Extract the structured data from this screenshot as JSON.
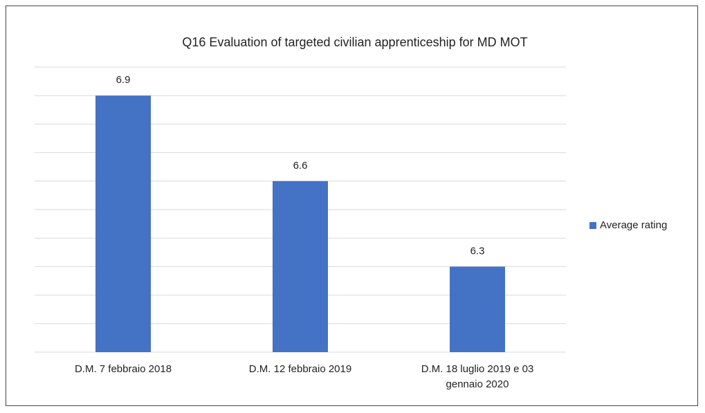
{
  "chart_data": {
    "type": "bar",
    "title": "Q16 Evaluation of targeted civilian apprenticeship for MD MOT",
    "categories": [
      "D.M. 7 febbraio 2018",
      "D.M. 12 febbraio 2019",
      "D.M. 18 luglio 2019 e 03 gennaio 2020"
    ],
    "series": [
      {
        "name": "Average rating",
        "color": "#4472c4",
        "values": [
          6.9,
          6.6,
          6.3
        ]
      }
    ],
    "ylim": [
      6.0,
      7.0
    ],
    "yticks": [
      6.0,
      6.1,
      6.2,
      6.3,
      6.4,
      6.5,
      6.6,
      6.7,
      6.8,
      6.9,
      7.0
    ],
    "grid": true,
    "legend": "right"
  }
}
